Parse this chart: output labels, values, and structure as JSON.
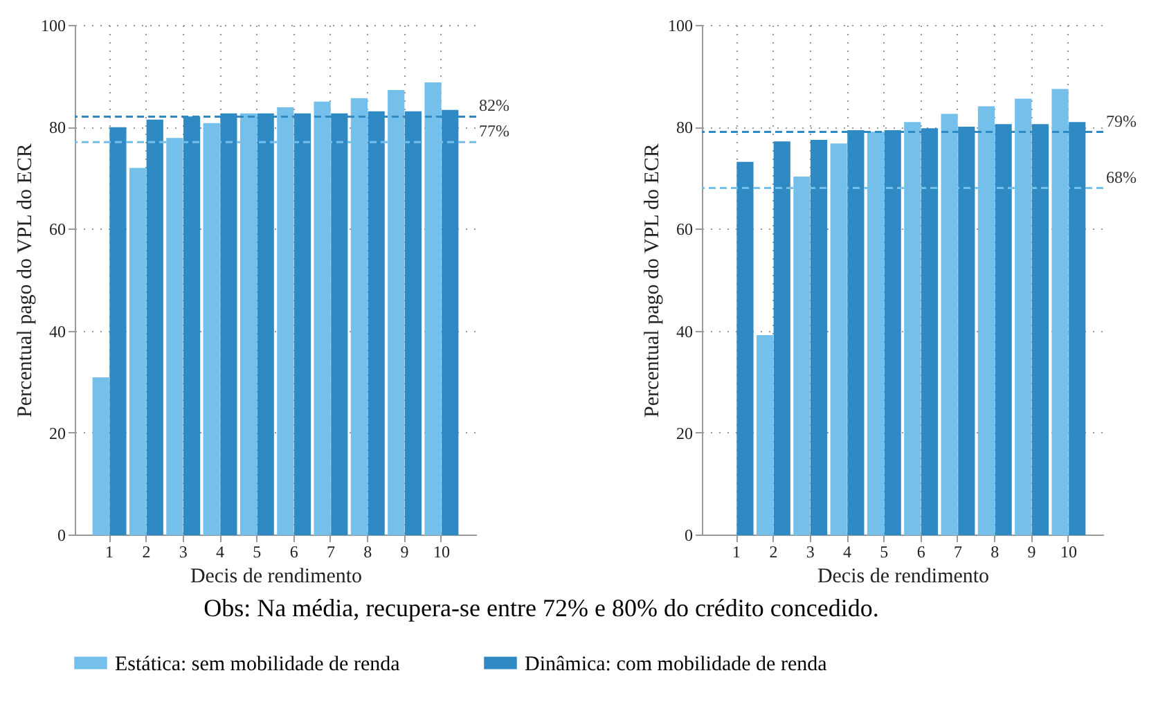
{
  "chart_data": [
    {
      "type": "bar",
      "xlabel": "Decis de rendimento",
      "ylabel": "Percentual pago do VPL do ECR",
      "categories": [
        "1",
        "2",
        "3",
        "4",
        "5",
        "6",
        "7",
        "8",
        "9",
        "10"
      ],
      "ylim": [
        0,
        100
      ],
      "yticks": [
        0,
        20,
        40,
        60,
        80,
        100
      ],
      "grid": true,
      "legend": "bottom",
      "annotations": [
        "Obs: Na média, recupera-se entre 72% e 80% do crédito concedido."
      ],
      "series": [
        {
          "name": "Estática: sem mobilidade de renda",
          "color": "#74c0ea",
          "values": [
            30.7,
            71.8,
            77.7,
            80.6,
            82.5,
            83.7,
            84.8,
            85.5,
            87.1,
            88.6
          ]
        },
        {
          "name": "Dinâmica: com mobilidade de renda",
          "color": "#2f8ac4",
          "values": [
            79.8,
            81.3,
            81.9,
            82.5,
            82.5,
            82.5,
            82.5,
            82.9,
            82.9,
            83.2
          ]
        }
      ],
      "ref_lines": [
        {
          "axis": "y",
          "value": 82,
          "label": "82%",
          "color": "#2f8ac4",
          "line_style": "dashed"
        },
        {
          "axis": "y",
          "value": 77,
          "label": "77%",
          "color": "#74c0ea",
          "line_style": "dashed"
        }
      ]
    },
    {
      "type": "bar",
      "xlabel": "Decis de rendimento",
      "ylabel": "Percentual pago do VPL do ECR",
      "categories": [
        "1",
        "2",
        "3",
        "4",
        "5",
        "6",
        "7",
        "8",
        "9",
        "10"
      ],
      "ylim": [
        0,
        100
      ],
      "yticks": [
        0,
        20,
        40,
        60,
        80,
        100
      ],
      "grid": true,
      "series": [
        {
          "name": "Estática: sem mobilidade de renda",
          "color": "#74c0ea",
          "values": [
            null,
            39.0,
            70.1,
            76.6,
            78.9,
            80.8,
            82.4,
            83.9,
            85.4,
            87.3
          ]
        },
        {
          "name": "Dinâmica: com mobilidade de renda",
          "color": "#2f8ac4",
          "values": [
            73.0,
            77.0,
            77.3,
            79.2,
            79.2,
            79.6,
            79.9,
            80.4,
            80.4,
            80.8
          ]
        }
      ],
      "ref_lines": [
        {
          "axis": "y",
          "value": 79,
          "label": "79%",
          "color": "#2f8ac4",
          "line_style": "dashed"
        },
        {
          "axis": "y",
          "value": 68,
          "label": "68%",
          "color": "#74c0ea",
          "line_style": "dashed"
        }
      ]
    }
  ]
}
